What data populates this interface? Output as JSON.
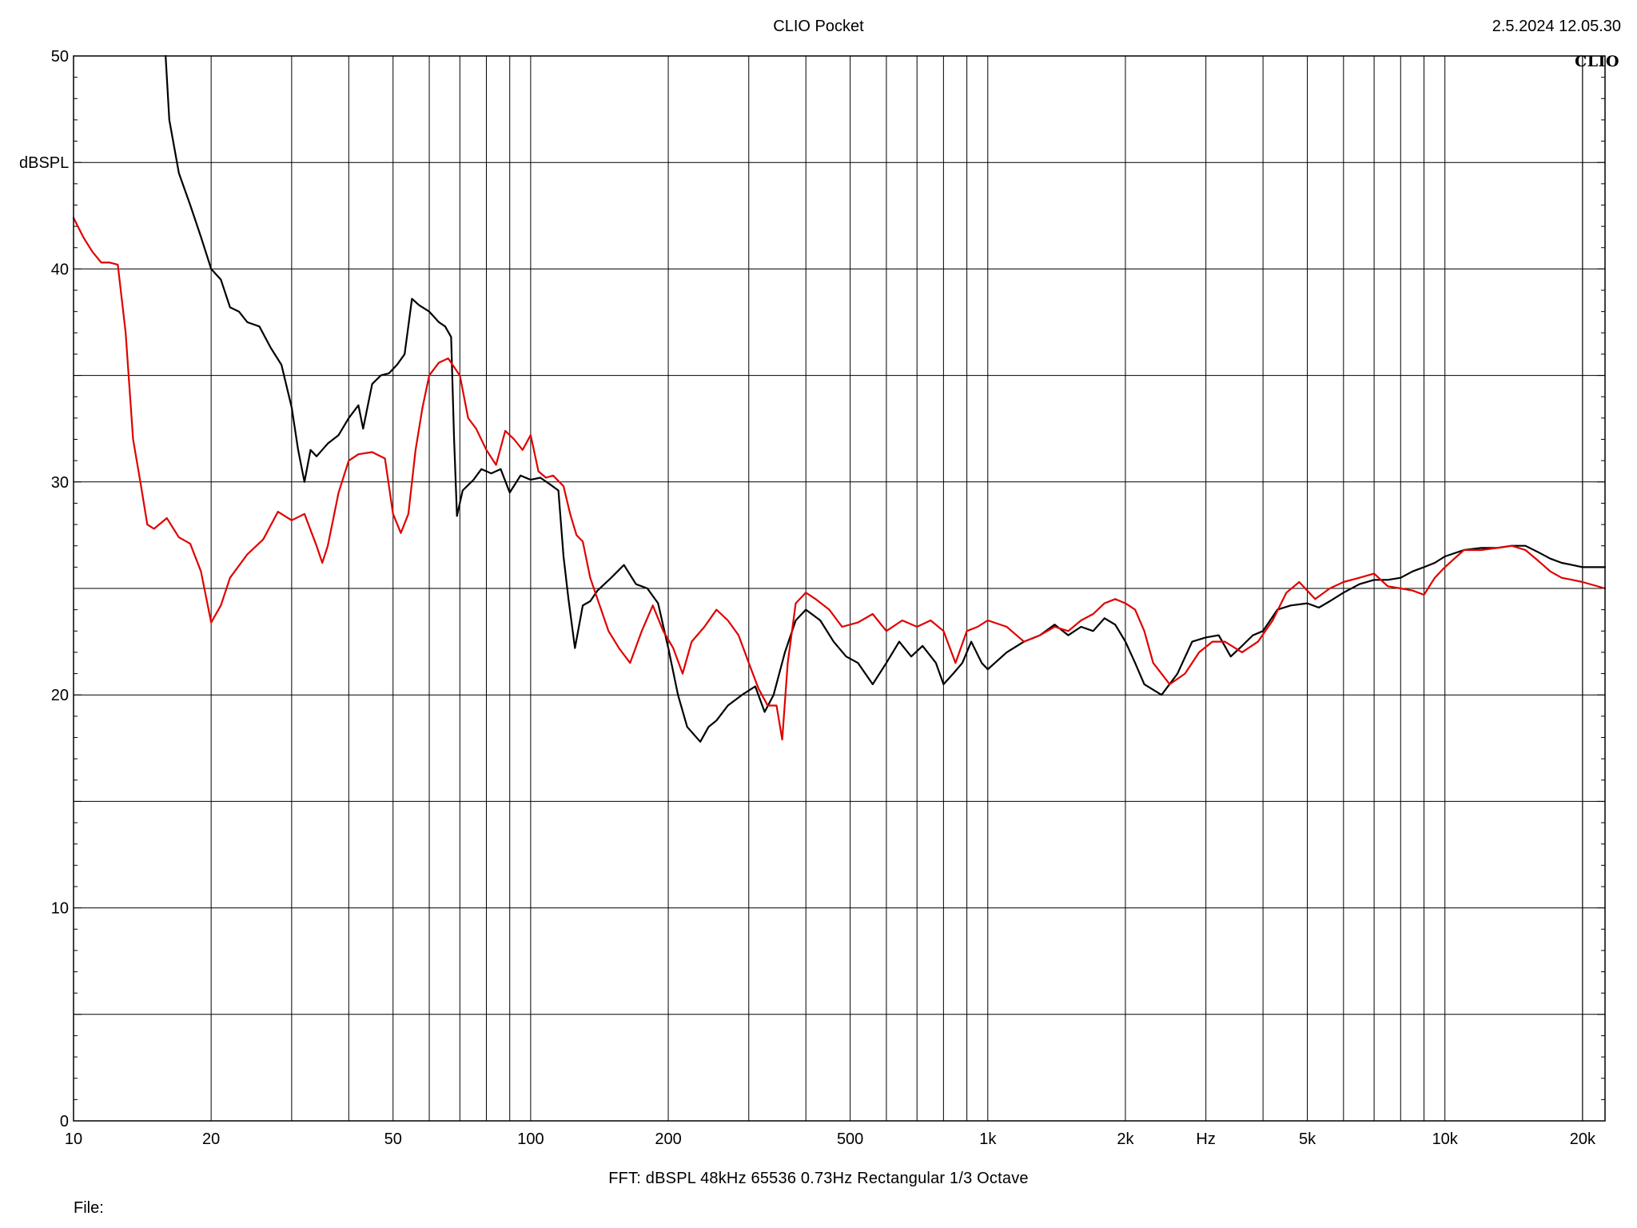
{
  "header": {
    "title": "CLIO Pocket",
    "datetime": "2.5.2024 12.05.30",
    "brand": "CLIO"
  },
  "footer": {
    "settings": "FFT:  dBSPL  48kHz   65536  0.73Hz  Rectangular  1/3 Octave",
    "file_label": "File:"
  },
  "colors": {
    "background": "#ffffff",
    "grid": "#000000",
    "series_black": "#000000",
    "series_red": "#e00000"
  },
  "chart_data": {
    "type": "line",
    "title": "CLIO Pocket",
    "ylabel": "dBSPL",
    "xunit_label": "Hz",
    "xscale": "log",
    "xlim": [
      10,
      22400
    ],
    "ylim": [
      0,
      50
    ],
    "grid": true,
    "x_ticks": [
      {
        "value": 10,
        "label": "10"
      },
      {
        "value": 20,
        "label": "20"
      },
      {
        "value": 50,
        "label": "50"
      },
      {
        "value": 100,
        "label": "100"
      },
      {
        "value": 200,
        "label": "200"
      },
      {
        "value": 500,
        "label": "500"
      },
      {
        "value": 1000,
        "label": "1k"
      },
      {
        "value": 2000,
        "label": "2k"
      },
      {
        "value": 5000,
        "label": "5k"
      },
      {
        "value": 10000,
        "label": "10k"
      },
      {
        "value": 20000,
        "label": "20k"
      }
    ],
    "y_ticks": [
      {
        "value": 0,
        "label": "0"
      },
      {
        "value": 10,
        "label": "10"
      },
      {
        "value": 20,
        "label": "20"
      },
      {
        "value": 30,
        "label": "30"
      },
      {
        "value": 40,
        "label": "40"
      },
      {
        "value": 50,
        "label": "50"
      }
    ],
    "series": [
      {
        "color": "#000000",
        "points": [
          [
            15.9,
            50
          ],
          [
            16.2,
            47
          ],
          [
            17,
            44.5
          ],
          [
            18,
            43
          ],
          [
            19,
            41.5
          ],
          [
            20,
            40
          ],
          [
            21,
            39.5
          ],
          [
            22,
            38.2
          ],
          [
            23,
            38
          ],
          [
            24,
            37.5
          ],
          [
            25.5,
            37.3
          ],
          [
            27,
            36.3
          ],
          [
            28.5,
            35.5
          ],
          [
            30,
            33.5
          ],
          [
            31,
            31.5
          ],
          [
            32,
            30
          ],
          [
            33,
            31.5
          ],
          [
            34,
            31.2
          ],
          [
            36,
            31.8
          ],
          [
            38,
            32.2
          ],
          [
            40,
            33
          ],
          [
            42,
            33.6
          ],
          [
            43,
            32.5
          ],
          [
            45,
            34.6
          ],
          [
            47,
            35
          ],
          [
            49,
            35.1
          ],
          [
            51,
            35.5
          ],
          [
            53,
            36
          ],
          [
            55,
            38.6
          ],
          [
            57,
            38.3
          ],
          [
            60,
            38
          ],
          [
            63,
            37.5
          ],
          [
            65,
            37.3
          ],
          [
            67,
            36.8
          ],
          [
            68,
            32
          ],
          [
            69,
            28.4
          ],
          [
            71,
            29.6
          ],
          [
            75,
            30.1
          ],
          [
            78,
            30.6
          ],
          [
            82,
            30.4
          ],
          [
            86,
            30.6
          ],
          [
            90,
            29.5
          ],
          [
            95,
            30.3
          ],
          [
            100,
            30.1
          ],
          [
            105,
            30.2
          ],
          [
            110,
            29.9
          ],
          [
            115,
            29.6
          ],
          [
            118,
            26.5
          ],
          [
            121,
            24.5
          ],
          [
            125,
            22.2
          ],
          [
            130,
            24.2
          ],
          [
            135,
            24.4
          ],
          [
            140,
            24.9
          ],
          [
            150,
            25.5
          ],
          [
            160,
            26.1
          ],
          [
            170,
            25.2
          ],
          [
            180,
            25
          ],
          [
            190,
            24.3
          ],
          [
            200,
            22.2
          ],
          [
            210,
            20
          ],
          [
            220,
            18.5
          ],
          [
            235,
            17.8
          ],
          [
            245,
            18.5
          ],
          [
            255,
            18.8
          ],
          [
            270,
            19.5
          ],
          [
            290,
            20
          ],
          [
            310,
            20.4
          ],
          [
            325,
            19.2
          ],
          [
            340,
            20
          ],
          [
            360,
            22
          ],
          [
            380,
            23.5
          ],
          [
            400,
            24
          ],
          [
            430,
            23.5
          ],
          [
            460,
            22.5
          ],
          [
            490,
            21.8
          ],
          [
            520,
            21.5
          ],
          [
            560,
            20.5
          ],
          [
            600,
            21.5
          ],
          [
            640,
            22.5
          ],
          [
            680,
            21.8
          ],
          [
            720,
            22.3
          ],
          [
            770,
            21.5
          ],
          [
            800,
            20.5
          ],
          [
            840,
            21
          ],
          [
            880,
            21.5
          ],
          [
            920,
            22.5
          ],
          [
            970,
            21.5
          ],
          [
            1000,
            21.2
          ],
          [
            1100,
            22
          ],
          [
            1200,
            22.5
          ],
          [
            1300,
            22.8
          ],
          [
            1400,
            23.3
          ],
          [
            1500,
            22.8
          ],
          [
            1600,
            23.2
          ],
          [
            1700,
            23
          ],
          [
            1800,
            23.6
          ],
          [
            1900,
            23.3
          ],
          [
            2000,
            22.5
          ],
          [
            2100,
            21.5
          ],
          [
            2200,
            20.5
          ],
          [
            2400,
            20
          ],
          [
            2600,
            21
          ],
          [
            2800,
            22.5
          ],
          [
            3000,
            22.7
          ],
          [
            3200,
            22.8
          ],
          [
            3400,
            21.8
          ],
          [
            3600,
            22.3
          ],
          [
            3800,
            22.8
          ],
          [
            4000,
            23
          ],
          [
            4300,
            24
          ],
          [
            4600,
            24.2
          ],
          [
            5000,
            24.3
          ],
          [
            5300,
            24.1
          ],
          [
            5600,
            24.4
          ],
          [
            6000,
            24.8
          ],
          [
            6500,
            25.2
          ],
          [
            7000,
            25.4
          ],
          [
            7500,
            25.4
          ],
          [
            8000,
            25.5
          ],
          [
            8500,
            25.8
          ],
          [
            9000,
            26
          ],
          [
            9500,
            26.2
          ],
          [
            10000,
            26.5
          ],
          [
            11000,
            26.8
          ],
          [
            12000,
            26.9
          ],
          [
            13000,
            26.9
          ],
          [
            14000,
            27
          ],
          [
            15000,
            27
          ],
          [
            16000,
            26.7
          ],
          [
            17000,
            26.4
          ],
          [
            18000,
            26.2
          ],
          [
            19000,
            26.1
          ],
          [
            20000,
            26
          ],
          [
            22000,
            26
          ],
          [
            22400,
            26
          ]
        ]
      },
      {
        "color": "#e00000",
        "points": [
          [
            10,
            42.4
          ],
          [
            10.5,
            41.5
          ],
          [
            11,
            40.8
          ],
          [
            11.5,
            40.3
          ],
          [
            12,
            40.3
          ],
          [
            12.5,
            40.2
          ],
          [
            13,
            37
          ],
          [
            13.5,
            32
          ],
          [
            14,
            30
          ],
          [
            14.5,
            28
          ],
          [
            15,
            27.8
          ],
          [
            16,
            28.3
          ],
          [
            17,
            27.4
          ],
          [
            18,
            27.1
          ],
          [
            19,
            25.8
          ],
          [
            20,
            23.4
          ],
          [
            21,
            24.2
          ],
          [
            22,
            25.5
          ],
          [
            24,
            26.6
          ],
          [
            26,
            27.3
          ],
          [
            28,
            28.6
          ],
          [
            30,
            28.2
          ],
          [
            32,
            28.5
          ],
          [
            34,
            27
          ],
          [
            35,
            26.2
          ],
          [
            36,
            27
          ],
          [
            38,
            29.5
          ],
          [
            40,
            31
          ],
          [
            42,
            31.3
          ],
          [
            45,
            31.4
          ],
          [
            48,
            31.1
          ],
          [
            50,
            28.5
          ],
          [
            52,
            27.6
          ],
          [
            54,
            28.5
          ],
          [
            56,
            31.5
          ],
          [
            58,
            33.5
          ],
          [
            60,
            35
          ],
          [
            63,
            35.6
          ],
          [
            66,
            35.8
          ],
          [
            70,
            35
          ],
          [
            73,
            33
          ],
          [
            76,
            32.5
          ],
          [
            80,
            31.5
          ],
          [
            84,
            30.8
          ],
          [
            88,
            32.4
          ],
          [
            92,
            32
          ],
          [
            96,
            31.5
          ],
          [
            100,
            32.2
          ],
          [
            104,
            30.5
          ],
          [
            108,
            30.2
          ],
          [
            112,
            30.3
          ],
          [
            118,
            29.8
          ],
          [
            122,
            28.5
          ],
          [
            126,
            27.5
          ],
          [
            130,
            27.2
          ],
          [
            135,
            25.5
          ],
          [
            140,
            24.5
          ],
          [
            148,
            23
          ],
          [
            156,
            22.2
          ],
          [
            165,
            21.5
          ],
          [
            175,
            23
          ],
          [
            185,
            24.2
          ],
          [
            195,
            23
          ],
          [
            205,
            22.2
          ],
          [
            215,
            21
          ],
          [
            225,
            22.5
          ],
          [
            240,
            23.2
          ],
          [
            255,
            24
          ],
          [
            270,
            23.5
          ],
          [
            285,
            22.8
          ],
          [
            300,
            21.5
          ],
          [
            315,
            20.3
          ],
          [
            330,
            19.5
          ],
          [
            345,
            19.5
          ],
          [
            355,
            17.9
          ],
          [
            365,
            21.5
          ],
          [
            380,
            24.3
          ],
          [
            400,
            24.8
          ],
          [
            420,
            24.5
          ],
          [
            450,
            24
          ],
          [
            480,
            23.2
          ],
          [
            520,
            23.4
          ],
          [
            560,
            23.8
          ],
          [
            600,
            23
          ],
          [
            650,
            23.5
          ],
          [
            700,
            23.2
          ],
          [
            750,
            23.5
          ],
          [
            800,
            23
          ],
          [
            850,
            21.5
          ],
          [
            900,
            23
          ],
          [
            950,
            23.2
          ],
          [
            1000,
            23.5
          ],
          [
            1100,
            23.2
          ],
          [
            1200,
            22.5
          ],
          [
            1300,
            22.8
          ],
          [
            1400,
            23.2
          ],
          [
            1500,
            23
          ],
          [
            1600,
            23.5
          ],
          [
            1700,
            23.8
          ],
          [
            1800,
            24.3
          ],
          [
            1900,
            24.5
          ],
          [
            2000,
            24.3
          ],
          [
            2100,
            24
          ],
          [
            2200,
            23
          ],
          [
            2300,
            21.5
          ],
          [
            2500,
            20.5
          ],
          [
            2700,
            21
          ],
          [
            2900,
            22
          ],
          [
            3100,
            22.5
          ],
          [
            3300,
            22.5
          ],
          [
            3600,
            22
          ],
          [
            3900,
            22.5
          ],
          [
            4200,
            23.5
          ],
          [
            4500,
            24.8
          ],
          [
            4800,
            25.3
          ],
          [
            5200,
            24.5
          ],
          [
            5600,
            25
          ],
          [
            6000,
            25.3
          ],
          [
            6500,
            25.5
          ],
          [
            7000,
            25.7
          ],
          [
            7500,
            25.1
          ],
          [
            8000,
            25
          ],
          [
            8500,
            24.9
          ],
          [
            9000,
            24.7
          ],
          [
            9500,
            25.5
          ],
          [
            10000,
            26
          ],
          [
            11000,
            26.8
          ],
          [
            12000,
            26.8
          ],
          [
            13000,
            26.9
          ],
          [
            14000,
            27
          ],
          [
            15000,
            26.8
          ],
          [
            16000,
            26.3
          ],
          [
            17000,
            25.8
          ],
          [
            18000,
            25.5
          ],
          [
            19000,
            25.4
          ],
          [
            20000,
            25.3
          ],
          [
            22400,
            25
          ]
        ]
      }
    ]
  }
}
